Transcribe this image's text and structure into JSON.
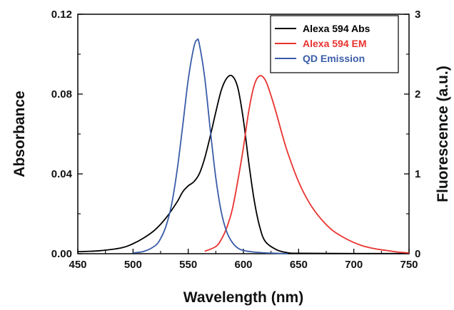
{
  "chart_data": {
    "type": "line",
    "xlabel": "Wavelength (nm)",
    "ylabel": "Absorbance",
    "y2label": "Fluorescence (a.u.)",
    "xlim": [
      450,
      750
    ],
    "ylim": [
      0,
      0.12
    ],
    "y2lim": [
      0,
      3
    ],
    "x_ticks": [
      450,
      500,
      550,
      600,
      650,
      700,
      750
    ],
    "x_tick_labels": [
      "450",
      "500",
      "550",
      "600",
      "650",
      "700",
      "750"
    ],
    "y_ticks": [
      0,
      0.04,
      0.08,
      0.12
    ],
    "y_tick_labels": [
      "0.00",
      "0.04",
      "0.08",
      "0.12"
    ],
    "y2_ticks": [
      0,
      1,
      2,
      3
    ],
    "y2_tick_labels": [
      "0",
      "1",
      "2",
      "3"
    ],
    "grid": false,
    "legend_position": "top-right",
    "series": [
      {
        "name": "Alexa 594 Abs",
        "axis": "left",
        "color": "#000000",
        "x": [
          450,
          470,
          490,
          500,
          510,
          520,
          530,
          540,
          545,
          550,
          555,
          560,
          565,
          570,
          575,
          580,
          585,
          590,
          595,
          600,
          605,
          610,
          615,
          620,
          630,
          640,
          650,
          700,
          750
        ],
        "y": [
          0.001,
          0.0015,
          0.003,
          0.005,
          0.008,
          0.012,
          0.018,
          0.026,
          0.031,
          0.034,
          0.036,
          0.04,
          0.048,
          0.059,
          0.071,
          0.082,
          0.088,
          0.089,
          0.083,
          0.067,
          0.045,
          0.026,
          0.013,
          0.006,
          0.002,
          0.0005,
          0.0002,
          0.0001,
          0.0001
        ]
      },
      {
        "name": "Alexa 594 EM",
        "axis": "right",
        "color": "#e8332f",
        "x": [
          565,
          575,
          580,
          585,
          590,
          595,
          600,
          605,
          610,
          615,
          620,
          625,
          630,
          635,
          640,
          650,
          660,
          670,
          680,
          690,
          700,
          710,
          720,
          730,
          740,
          750
        ],
        "y": [
          0.03,
          0.09,
          0.18,
          0.33,
          0.56,
          0.92,
          1.33,
          1.8,
          2.12,
          2.23,
          2.17,
          1.98,
          1.75,
          1.5,
          1.27,
          0.9,
          0.63,
          0.44,
          0.3,
          0.21,
          0.14,
          0.09,
          0.06,
          0.04,
          0.02,
          0.01
        ]
      },
      {
        "name": "QD Emission",
        "axis": "right",
        "color": "#3a5ca8",
        "x": [
          500,
          510,
          520,
          525,
          530,
          535,
          540,
          545,
          550,
          555,
          558,
          560,
          565,
          570,
          575,
          580,
          585,
          590,
          595,
          600,
          610,
          620,
          630,
          640
        ],
        "y": [
          0.01,
          0.03,
          0.1,
          0.19,
          0.35,
          0.62,
          1.05,
          1.6,
          2.18,
          2.58,
          2.68,
          2.63,
          2.2,
          1.55,
          0.95,
          0.52,
          0.27,
          0.14,
          0.07,
          0.04,
          0.02,
          0.01,
          0.005,
          0.0
        ]
      }
    ]
  }
}
